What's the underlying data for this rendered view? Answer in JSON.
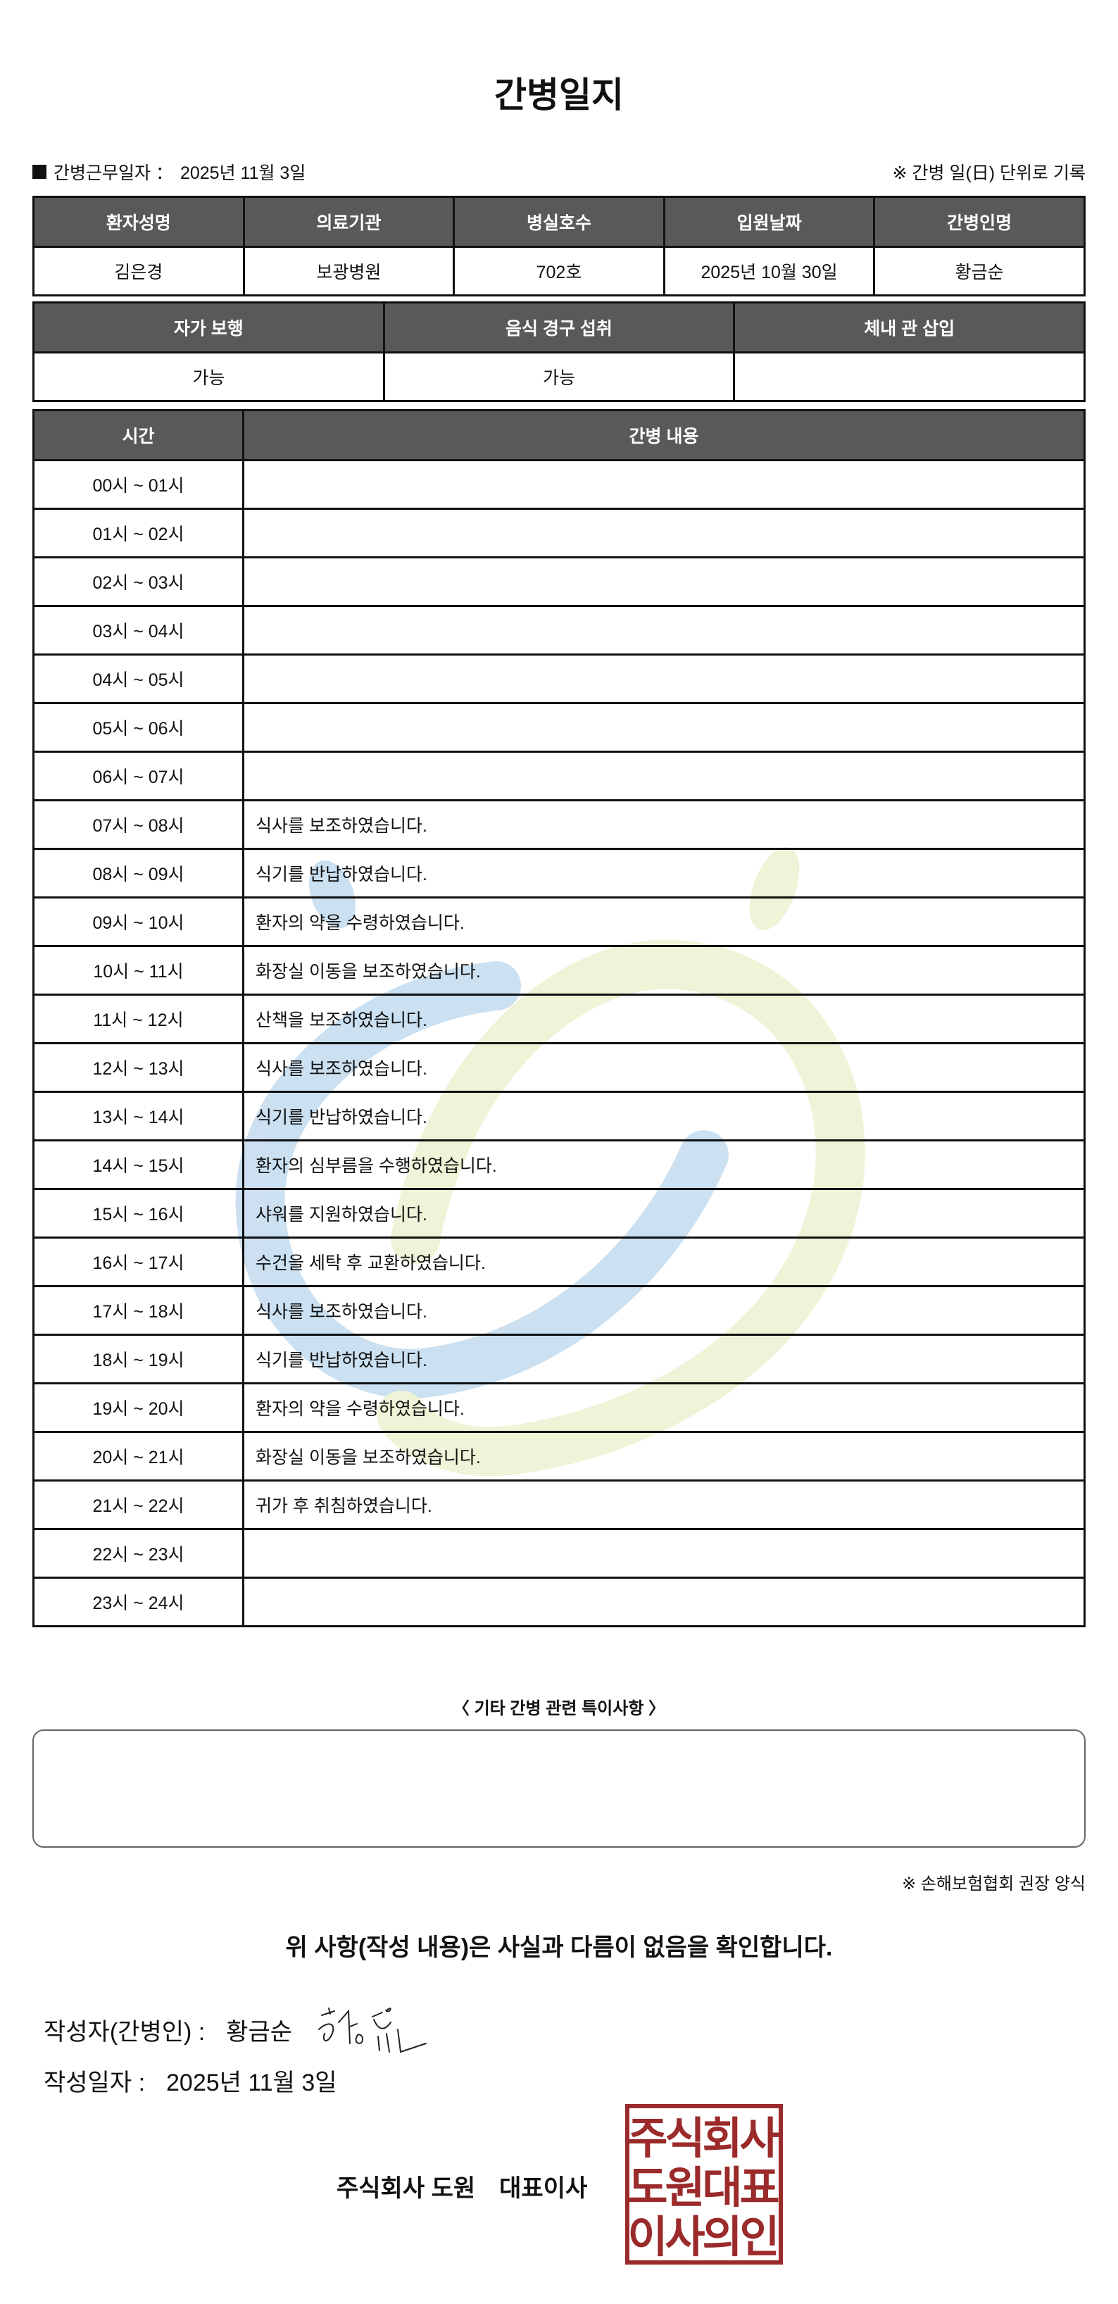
{
  "title": "간병일지",
  "meta": {
    "work_date_label": "간병근무일자 ：",
    "work_date": "2025년 11월 3일",
    "note": "※ 간병 일(日) 단위로 기록"
  },
  "patient_table": {
    "headers": [
      "환자성명",
      "의료기관",
      "병실호수",
      "입원날짜",
      "간병인명"
    ],
    "values": [
      "김은경",
      "보광병원",
      "702호",
      "2025년 10월 30일",
      "황금순"
    ]
  },
  "status_table": {
    "headers": [
      "자가 보행",
      "음식 경구 섭취",
      "체내 관 삽입"
    ],
    "values": [
      "가능",
      "가능",
      ""
    ]
  },
  "log_table": {
    "headers": [
      "시간",
      "간병 내용"
    ],
    "rows": [
      {
        "time": "00시 ~ 01시",
        "content": ""
      },
      {
        "time": "01시 ~ 02시",
        "content": ""
      },
      {
        "time": "02시 ~ 03시",
        "content": ""
      },
      {
        "time": "03시 ~ 04시",
        "content": ""
      },
      {
        "time": "04시 ~ 05시",
        "content": ""
      },
      {
        "time": "05시 ~ 06시",
        "content": ""
      },
      {
        "time": "06시 ~ 07시",
        "content": ""
      },
      {
        "time": "07시 ~ 08시",
        "content": "식사를 보조하였습니다."
      },
      {
        "time": "08시 ~ 09시",
        "content": "식기를 반납하였습니다."
      },
      {
        "time": "09시 ~ 10시",
        "content": "환자의 약을 수령하였습니다."
      },
      {
        "time": "10시 ~ 11시",
        "content": "화장실 이동을 보조하였습니다."
      },
      {
        "time": "11시 ~ 12시",
        "content": "산책을 보조하였습니다."
      },
      {
        "time": "12시 ~ 13시",
        "content": "식사를 보조하였습니다."
      },
      {
        "time": "13시 ~ 14시",
        "content": "식기를 반납하였습니다."
      },
      {
        "time": "14시 ~ 15시",
        "content": "환자의 심부름을 수행하였습니다."
      },
      {
        "time": "15시 ~ 16시",
        "content": "샤워를 지원하였습니다."
      },
      {
        "time": "16시 ~ 17시",
        "content": "수건을 세탁 후 교환하였습니다."
      },
      {
        "time": "17시 ~ 18시",
        "content": "식사를 보조하였습니다."
      },
      {
        "time": "18시 ~ 19시",
        "content": "식기를 반납하였습니다."
      },
      {
        "time": "19시 ~ 20시",
        "content": "환자의 약을 수령하였습니다."
      },
      {
        "time": "20시 ~ 21시",
        "content": "화장실 이동을 보조하였습니다."
      },
      {
        "time": "21시 ~ 22시",
        "content": "귀가 후 취침하였습니다."
      },
      {
        "time": "22시 ~ 23시",
        "content": ""
      },
      {
        "time": "23시 ~ 24시",
        "content": ""
      }
    ]
  },
  "notes": {
    "title": "〈 기타 간병 관련 특이사항 〉",
    "content": ""
  },
  "recommend_note": "※ 손해보험협회 권장 양식",
  "confirm_statement": "위 사항(작성 내용)은 사실과 다름이 없음을 확인합니다.",
  "writer": {
    "label": "작성자(간병인) :",
    "name": "황금순",
    "signature": "황금순"
  },
  "written_date": {
    "label": "작성일자 :",
    "value": "2025년 11월 3일"
  },
  "company": {
    "name": "주식회사 도원",
    "title": "대표이사"
  },
  "seal": {
    "text": "주식회사도원대표이사의인",
    "color": "#9b2a2a"
  },
  "colors": {
    "header_bg": "#595959",
    "watermark_blue": "#c6ddef",
    "watermark_green": "#eef2d3"
  }
}
